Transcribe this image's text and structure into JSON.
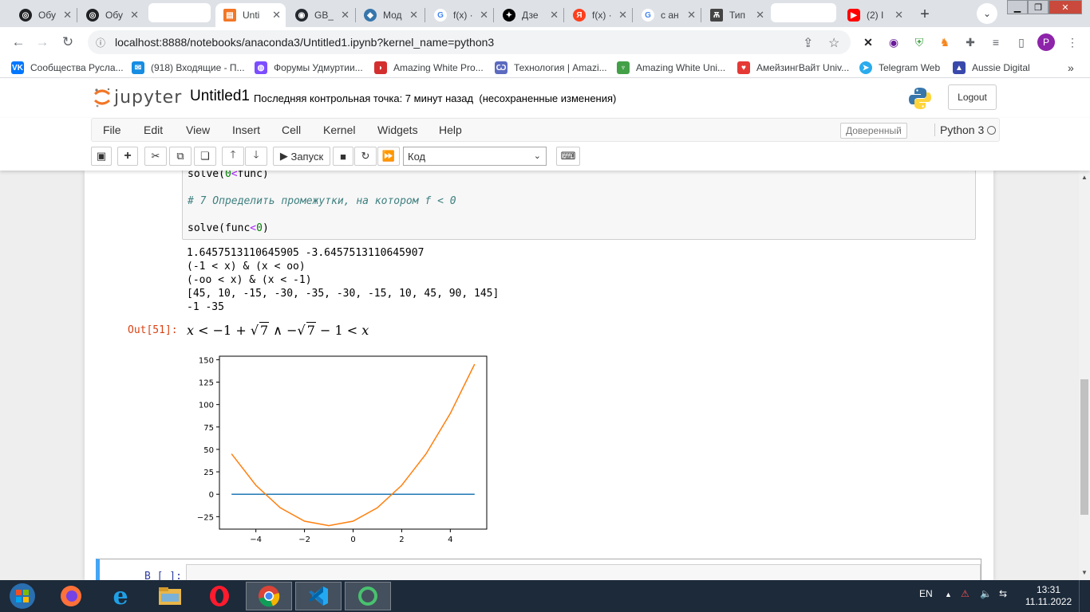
{
  "browser": {
    "tabs": [
      {
        "title": "Обу",
        "fav_color": "#202124",
        "fav_glyph": "◎"
      },
      {
        "title": "Обу",
        "fav_color": "#202124",
        "fav_glyph": "◎"
      },
      {
        "title": "",
        "fav_color": "",
        "fav_glyph": ""
      },
      {
        "title": "Unti",
        "fav_color": "#f37626",
        "fav_glyph": "▤"
      },
      {
        "title": "GB_",
        "fav_color": "#24292f",
        "fav_glyph": "◉"
      },
      {
        "title": "Мод",
        "fav_color": "#3776ab",
        "fav_glyph": "◆"
      },
      {
        "title": "f(x) ·",
        "fav_color": "#4285f4",
        "fav_glyph": "G"
      },
      {
        "title": "Дзе",
        "fav_color": "#000000",
        "fav_glyph": "✦"
      },
      {
        "title": "f(x) ·",
        "fav_color": "#fc3f1d",
        "fav_glyph": "Я"
      },
      {
        "title": "с ан",
        "fav_color": "#4285f4",
        "fav_glyph": "G"
      },
      {
        "title": "Тип",
        "fav_color": "#444444",
        "fav_glyph": "Ѫ"
      },
      {
        "title": "",
        "fav_color": "",
        "fav_glyph": ""
      },
      {
        "title": "(2) I",
        "fav_color": "#ff0000",
        "fav_glyph": "▶"
      }
    ],
    "url": "localhost:8888/notebooks/anaconda3/Untitled1.ipynb?kernel_name=python3",
    "profile_initial": "P",
    "bookmarks": [
      {
        "label": "Сообщества Русла...",
        "color": "#0077ff",
        "glyph": "VK"
      },
      {
        "label": "(918) Входящие - П...",
        "color": "#168de2",
        "glyph": "✉"
      },
      {
        "label": "Форумы Удмуртии...",
        "color": "#7c4dff",
        "glyph": "◍"
      },
      {
        "label": "Amazing White Pro...",
        "color": "#d32f2f",
        "glyph": "◗"
      },
      {
        "label": "Технология | Amazi...",
        "color": "#5c6bc0",
        "glyph": "Ѡ"
      },
      {
        "label": "Amazing White Uni...",
        "color": "#43a047",
        "glyph": "♆"
      },
      {
        "label": "АмейзингВайт Univ...",
        "color": "#e53935",
        "glyph": "♥"
      },
      {
        "label": "Telegram Web",
        "color": "#2aabee",
        "glyph": "➤"
      },
      {
        "label": "Aussie Digital",
        "color": "#3949ab",
        "glyph": "▲"
      }
    ],
    "bookmarks_more": "»"
  },
  "jupyter": {
    "logo_text": "jupyter",
    "notebook_name": "Untitled1",
    "checkpoint": "Последняя контрольная точка: 7 минут назад",
    "unsaved": "(несохраненные изменения)",
    "logout": "Logout",
    "menu": [
      "File",
      "Edit",
      "View",
      "Insert",
      "Cell",
      "Kernel",
      "Widgets",
      "Help"
    ],
    "trusted": "Доверенный",
    "kernel": "Python 3",
    "run_label": "Запуск",
    "cell_type": "Код"
  },
  "cell": {
    "code_line1_a": "solve(",
    "code_line1_num": "0",
    "code_line1_op": "<",
    "code_line1_b": "func)",
    "comment": "# 7 Определить промежутки, на котором f < 0",
    "code_line3_a": "solve(func",
    "code_line3_op": "<",
    "code_line3_num": "0",
    "code_line3_b": ")",
    "output_lines": [
      "1.6457513110645905 -3.6457513110645907",
      "(-1 < x) & (x < oo)",
      "(-oo < x) & (x < -1)",
      "[45, 10, -15, -30, -35, -30, -15, 10, 45, 90, 145]",
      "-1 -35"
    ],
    "out_prompt": "Out[51]:",
    "math_x1": "x",
    "math_lt1": "<",
    "math_m1": "−1",
    "math_plus": "+",
    "math_sqrt_sym": "√",
    "math_7a": "7",
    "math_and": "∧",
    "math_minus": "−",
    "math_7b": "7",
    "math_m1b": "− 1",
    "math_lt2": "<",
    "math_x2": "x",
    "next_prompt": "В [ ]:"
  },
  "chart_data": {
    "type": "line",
    "x": [
      -5,
      -4,
      -3,
      -2,
      -1,
      0,
      1,
      2,
      3,
      4,
      5
    ],
    "series": [
      {
        "values": [
          45,
          10,
          -15,
          -30,
          -35,
          -30,
          -15,
          10,
          45,
          90,
          145
        ],
        "color": "#ff7f0e"
      },
      {
        "values": [
          0,
          0,
          0,
          0,
          0,
          0,
          0,
          0,
          0,
          0,
          0
        ],
        "color": "#1f77b4"
      }
    ],
    "xticks": [
      -4,
      -2,
      0,
      2,
      4
    ],
    "yticks": [
      -25,
      0,
      25,
      50,
      75,
      100,
      125,
      150
    ],
    "xlim": [
      -5.5,
      5.5
    ],
    "ylim": [
      -38.9,
      153.9
    ],
    "title": "",
    "xlabel": "",
    "ylabel": ""
  },
  "taskbar": {
    "lang": "EN",
    "time": "13:31",
    "date": "11.11.2022"
  }
}
